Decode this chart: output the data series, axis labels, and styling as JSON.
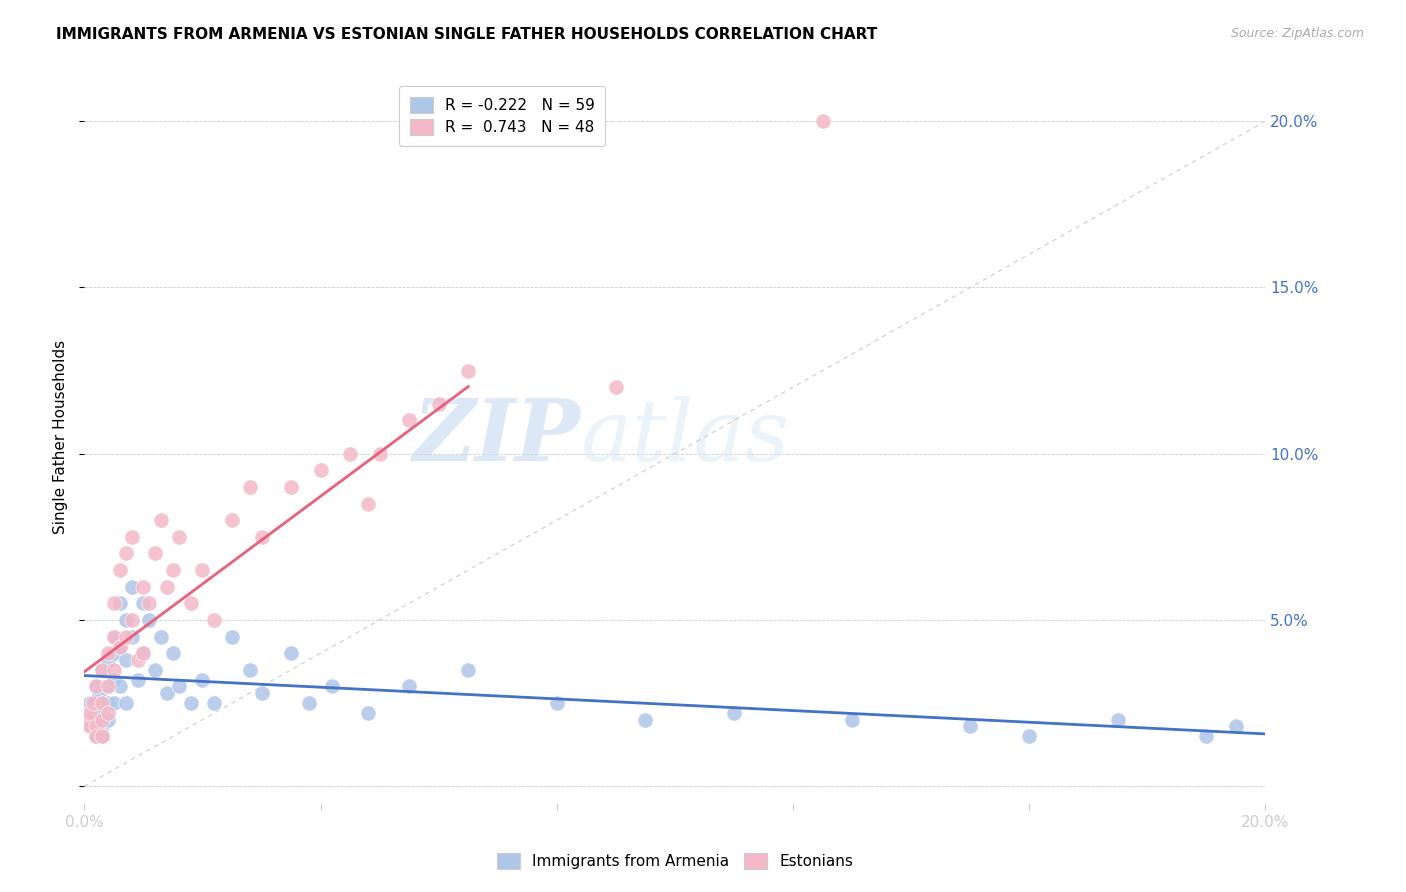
{
  "title": "IMMIGRANTS FROM ARMENIA VS ESTONIAN SINGLE FATHER HOUSEHOLDS CORRELATION CHART",
  "source": "Source: ZipAtlas.com",
  "ylabel": "Single Father Households",
  "legend_armenia": "Immigrants from Armenia",
  "legend_estonians": "Estonians",
  "r_armenia": "-0.222",
  "n_armenia": "59",
  "r_estonians": "0.743",
  "n_estonians": "48",
  "color_armenia": "#aec6e8",
  "color_estonians": "#f4b8c8",
  "color_line_armenia": "#4472c4",
  "color_line_estonians": "#e8607a",
  "watermark_zip": "ZIP",
  "watermark_atlas": "atlas",
  "xlim": [
    0.0,
    0.2
  ],
  "ylim": [
    -0.005,
    0.215
  ],
  "yticks_right": [
    0.0,
    0.05,
    0.1,
    0.15,
    0.2
  ],
  "ytick_labels_right": [
    "",
    "5.0%",
    "10.0%",
    "15.0%",
    "20.0%"
  ],
  "xticks": [
    0.0,
    0.04,
    0.08,
    0.12,
    0.16,
    0.2
  ],
  "xtick_labels": [
    "0.0%",
    "",
    "",
    "",
    "",
    "20.0%"
  ],
  "armenia_x": [
    0.0005,
    0.001,
    0.001,
    0.0015,
    0.002,
    0.002,
    0.002,
    0.0025,
    0.003,
    0.003,
    0.003,
    0.003,
    0.003,
    0.004,
    0.004,
    0.004,
    0.004,
    0.005,
    0.005,
    0.005,
    0.005,
    0.006,
    0.006,
    0.006,
    0.007,
    0.007,
    0.007,
    0.008,
    0.008,
    0.009,
    0.01,
    0.01,
    0.011,
    0.012,
    0.013,
    0.014,
    0.015,
    0.016,
    0.018,
    0.02,
    0.022,
    0.025,
    0.028,
    0.03,
    0.035,
    0.038,
    0.042,
    0.048,
    0.055,
    0.065,
    0.08,
    0.095,
    0.11,
    0.13,
    0.15,
    0.16,
    0.175,
    0.19,
    0.195
  ],
  "armenia_y": [
    0.02,
    0.025,
    0.018,
    0.022,
    0.03,
    0.02,
    0.015,
    0.028,
    0.035,
    0.025,
    0.022,
    0.018,
    0.015,
    0.038,
    0.03,
    0.025,
    0.02,
    0.045,
    0.04,
    0.032,
    0.025,
    0.055,
    0.042,
    0.03,
    0.05,
    0.038,
    0.025,
    0.06,
    0.045,
    0.032,
    0.055,
    0.04,
    0.05,
    0.035,
    0.045,
    0.028,
    0.04,
    0.03,
    0.025,
    0.032,
    0.025,
    0.045,
    0.035,
    0.028,
    0.04,
    0.025,
    0.03,
    0.022,
    0.03,
    0.035,
    0.025,
    0.02,
    0.022,
    0.02,
    0.018,
    0.015,
    0.02,
    0.015,
    0.018
  ],
  "estonian_x": [
    0.0005,
    0.001,
    0.001,
    0.0015,
    0.002,
    0.002,
    0.002,
    0.003,
    0.003,
    0.003,
    0.003,
    0.004,
    0.004,
    0.004,
    0.005,
    0.005,
    0.005,
    0.006,
    0.006,
    0.007,
    0.007,
    0.008,
    0.008,
    0.009,
    0.01,
    0.01,
    0.011,
    0.012,
    0.013,
    0.014,
    0.015,
    0.016,
    0.018,
    0.02,
    0.022,
    0.025,
    0.028,
    0.03,
    0.035,
    0.04,
    0.045,
    0.048,
    0.05,
    0.055,
    0.06,
    0.065,
    0.09,
    0.125
  ],
  "estonian_y": [
    0.02,
    0.018,
    0.022,
    0.025,
    0.03,
    0.018,
    0.015,
    0.035,
    0.025,
    0.02,
    0.015,
    0.04,
    0.03,
    0.022,
    0.055,
    0.045,
    0.035,
    0.065,
    0.042,
    0.07,
    0.045,
    0.075,
    0.05,
    0.038,
    0.06,
    0.04,
    0.055,
    0.07,
    0.08,
    0.06,
    0.065,
    0.075,
    0.055,
    0.065,
    0.05,
    0.08,
    0.09,
    0.075,
    0.09,
    0.095,
    0.1,
    0.085,
    0.1,
    0.11,
    0.115,
    0.125,
    0.12,
    0.2
  ],
  "estonian_line_x": [
    0.0,
    0.065
  ],
  "armenia_line_x": [
    0.0,
    0.2
  ]
}
